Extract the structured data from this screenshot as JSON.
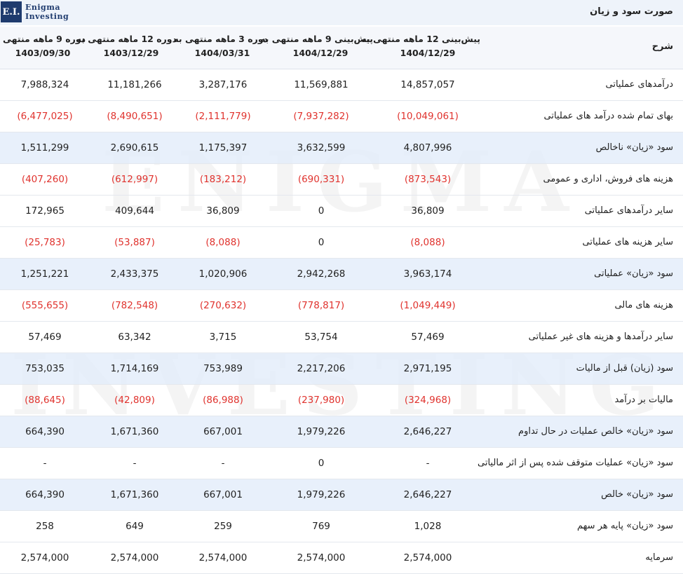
{
  "brand": {
    "logo_mark": "E.I.",
    "logo_line1": "Enigma",
    "logo_line2": "Investing",
    "watermark_line1": "ENIGMA",
    "watermark_line2": "INVESTING",
    "accent_color": "#1f3b6e",
    "negative_color": "#e0332e",
    "highlight_color": "#e2ecfa"
  },
  "title": "صورت سود و زیان",
  "header": {
    "description_label": "شرح",
    "columns": [
      {
        "line1": "پیش‌بینی 12 ماهه منتهی به",
        "line2": "1404/12/29"
      },
      {
        "line1": "پیش‌بینی 9 ماهه منتهی به",
        "line2": "1404/12/29"
      },
      {
        "line1": "دوره 3 ماهه منتهی به",
        "line2": "1404/03/31"
      },
      {
        "line1": "دوره 12 ماهه منتهی به",
        "line2": "1403/12/29"
      },
      {
        "line1": "دوره 9 ماهه منتهی به",
        "line2": "1403/09/30"
      }
    ]
  },
  "rows": [
    {
      "label": "درآمدهای عملیاتی",
      "highlight": false,
      "values": [
        "14,857,057",
        "11,569,881",
        "3,287,176",
        "11,181,266",
        "7,988,324"
      ]
    },
    {
      "label": "بهای تمام شده درآمد های عملیاتی",
      "highlight": false,
      "values": [
        "(10,049,061)",
        "(7,937,282)",
        "(2,111,779)",
        "(8,490,651)",
        "(6,477,025)"
      ]
    },
    {
      "label": "سود «زیان» ناخالص",
      "highlight": true,
      "values": [
        "4,807,996",
        "3,632,599",
        "1,175,397",
        "2,690,615",
        "1,511,299"
      ]
    },
    {
      "label": "هزینه های فروش، اداری و عمومی",
      "highlight": false,
      "values": [
        "(873,543)",
        "(690,331)",
        "(183,212)",
        "(612,997)",
        "(407,260)"
      ]
    },
    {
      "label": "سایر درآمدهای عملیاتی",
      "highlight": false,
      "values": [
        "36,809",
        "0",
        "36,809",
        "409,644",
        "172,965"
      ]
    },
    {
      "label": "سایر هزینه های عملیاتی",
      "highlight": false,
      "values": [
        "(8,088)",
        "0",
        "(8,088)",
        "(53,887)",
        "(25,783)"
      ]
    },
    {
      "label": "سود «زیان» عملیاتی",
      "highlight": true,
      "values": [
        "3,963,174",
        "2,942,268",
        "1,020,906",
        "2,433,375",
        "1,251,221"
      ]
    },
    {
      "label": "هزینه های مالی",
      "highlight": false,
      "values": [
        "(1,049,449)",
        "(778,817)",
        "(270,632)",
        "(782,548)",
        "(555,655)"
      ]
    },
    {
      "label": "سایر درآمدها و هزینه های غیر عملیاتی",
      "highlight": false,
      "values": [
        "57,469",
        "53,754",
        "3,715",
        "63,342",
        "57,469"
      ]
    },
    {
      "label": "سود (زیان) قبل از مالیات",
      "highlight": true,
      "values": [
        "2,971,195",
        "2,217,206",
        "753,989",
        "1,714,169",
        "753,035"
      ]
    },
    {
      "label": "مالیات بر درآمد",
      "highlight": false,
      "values": [
        "(324,968)",
        "(237,980)",
        "(86,988)",
        "(42,809)",
        "(88,645)"
      ]
    },
    {
      "label": "سود «زیان» خالص عملیات در حال تداوم",
      "highlight": true,
      "values": [
        "2,646,227",
        "1,979,226",
        "667,001",
        "1,671,360",
        "664,390"
      ]
    },
    {
      "label": "سود «زیان» عملیات متوقف شده پس از اثر مالیاتی",
      "highlight": false,
      "values": [
        "-",
        "0",
        "-",
        "-",
        "-"
      ]
    },
    {
      "label": "سود «زیان» خالص",
      "highlight": true,
      "values": [
        "2,646,227",
        "1,979,226",
        "667,001",
        "1,671,360",
        "664,390"
      ]
    },
    {
      "label": "سود «زیان» پایه هر سهم",
      "highlight": false,
      "values": [
        "1,028",
        "769",
        "259",
        "649",
        "258"
      ]
    },
    {
      "label": "سرمایه",
      "highlight": false,
      "values": [
        "2,574,000",
        "2,574,000",
        "2,574,000",
        "2,574,000",
        "2,574,000"
      ]
    }
  ]
}
